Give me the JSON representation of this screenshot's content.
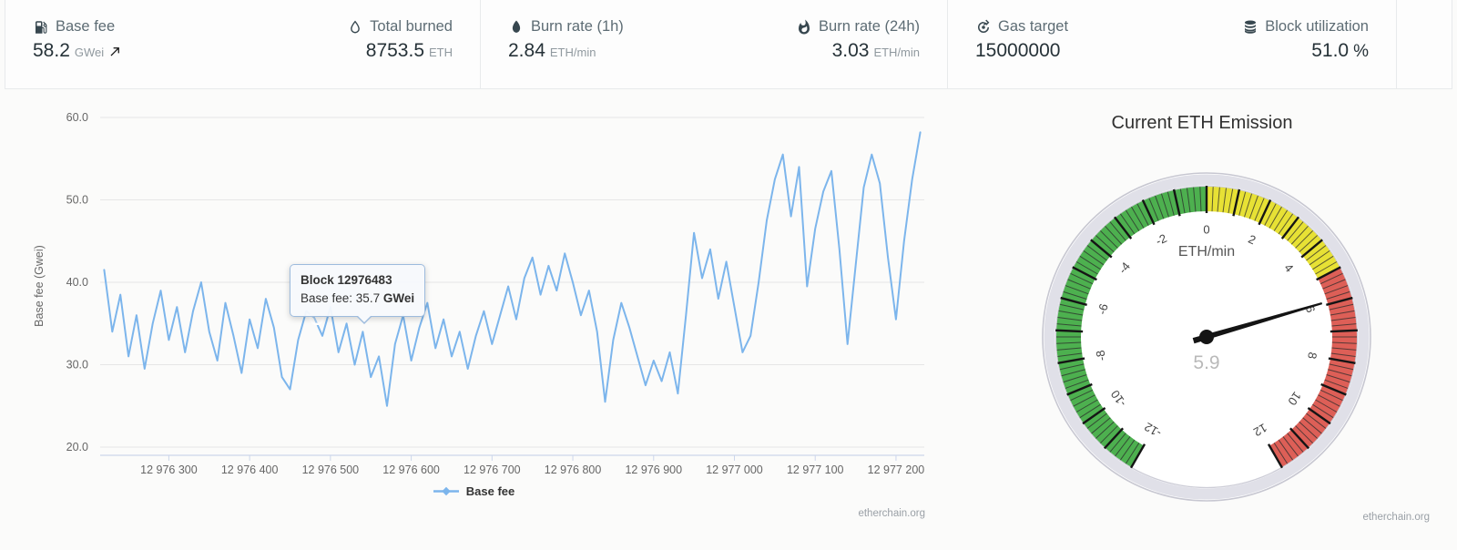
{
  "topbar": {
    "stats": [
      {
        "icon": "gas-pump-icon",
        "label": "Base fee",
        "value": "58.2",
        "unit": "GWei",
        "trend": "up"
      },
      {
        "icon": "droplet-icon",
        "label": "Total burned",
        "value": "8753.5",
        "unit": "ETH"
      },
      {
        "icon": "flame-icon",
        "label": "Burn rate (1h)",
        "value": "2.84",
        "unit": "ETH/min"
      },
      {
        "icon": "whatshot-icon",
        "label": "Burn rate (24h)",
        "value": "3.03",
        "unit": "ETH/min"
      },
      {
        "icon": "gas-target-icon",
        "label": "Gas target",
        "value": "15000000",
        "unit": ""
      },
      {
        "icon": "database-icon",
        "label": "Block utilization",
        "value": "51.0",
        "unit": "%"
      }
    ]
  },
  "chart_data": {
    "type": "line",
    "title": "",
    "xlabel": "",
    "ylabel": "Base fee (Gwei)",
    "grid": true,
    "x_range": [
      12976215,
      12977235
    ],
    "ylim": [
      18.5,
      62
    ],
    "y_ticks": [
      20,
      30,
      40,
      50,
      60
    ],
    "y_tick_labels": [
      "20.0",
      "30.0",
      "40.0",
      "50.0",
      "60.0"
    ],
    "x_tick_values": [
      12976300,
      12976400,
      12976500,
      12976600,
      12976700,
      12976800,
      12976900,
      12977000,
      12977100,
      12977200
    ],
    "x_tick_labels": [
      "12 976 300",
      "12 976 400",
      "12 976 500",
      "12 976 600",
      "12 976 700",
      "12 976 800",
      "12 976 900",
      "12 977 000",
      "12 977 100",
      "12 977 200"
    ],
    "legend": {
      "position": "bottom",
      "label": "Base fee"
    },
    "series": [
      {
        "name": "Base fee",
        "color": "#7cb5ec",
        "x_start": 12976220,
        "x_step": 10,
        "values": [
          41.5,
          34,
          38.5,
          31,
          36,
          29.5,
          35,
          39,
          33,
          37,
          31.5,
          36.5,
          40,
          34,
          30.5,
          37.5,
          33.5,
          29,
          35.5,
          32,
          38,
          34.5,
          28.5,
          27,
          33,
          36.5,
          35.7,
          33.5,
          37,
          31.5,
          35,
          30,
          34,
          28.5,
          31,
          25,
          32.5,
          36,
          30.5,
          34.5,
          37.5,
          32,
          35.5,
          31,
          34,
          29.5,
          33.5,
          36.5,
          32.5,
          36,
          39.5,
          35.5,
          40.5,
          43,
          38.5,
          42,
          39,
          43.5,
          40,
          36,
          39,
          34,
          25.5,
          33,
          37.5,
          34.5,
          31,
          27.5,
          30.5,
          28,
          31.5,
          26.5,
          36,
          46,
          40.5,
          44,
          38,
          42.5,
          37,
          31.5,
          33.5,
          40,
          47.5,
          52.5,
          55.5,
          48,
          54,
          39.5,
          46.5,
          51,
          53.5,
          44,
          32.5,
          42,
          51.5,
          55.5,
          52,
          43,
          35.5,
          45,
          52.5,
          58.2
        ]
      }
    ],
    "tooltip": {
      "title": "Block 12976483",
      "label": "Base fee: ",
      "value": "35.7",
      "unit": "GWei",
      "point_block": 12976483,
      "point_value": 35.7
    },
    "footer": "etherchain.org"
  },
  "gauge": {
    "title": "Current ETH Emission",
    "units": "ETH/min",
    "value": "5.9",
    "value_num": 5.9,
    "min": -12,
    "max": 12,
    "start_angle": -150,
    "end_angle": 150,
    "major_tick_step": 1,
    "label_step": 2,
    "tick_labels": [
      "-12",
      "-10",
      "-8",
      "-6",
      "-4",
      "-2",
      "0",
      "2",
      "4",
      "6",
      "8",
      "10",
      "12"
    ],
    "zones": [
      {
        "from": -12,
        "to": 0,
        "color": "#4db04f"
      },
      {
        "from": 0,
        "to": 5,
        "color": "#e7e135"
      },
      {
        "from": 5,
        "to": 12,
        "color": "#dd5f57"
      }
    ],
    "footer": "etherchain.org"
  }
}
